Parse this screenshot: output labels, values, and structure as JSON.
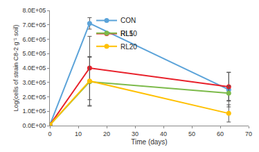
{
  "chart_data": {
    "type": "line",
    "x_label": "Time (days)",
    "y_label": "Log(cells of strain C8-2 g⁻¹ soil)",
    "x": [
      0,
      14,
      63
    ],
    "series": [
      {
        "name": "CON",
        "color": "#5ba3d9",
        "values": [
          5000,
          710000,
          250000
        ],
        "error": [
          0,
          40000,
          120000
        ]
      },
      {
        "name": "RL5",
        "color": "#e8202a",
        "values": [
          5000,
          400000,
          270000
        ],
        "error": [
          0,
          220000,
          100000
        ]
      },
      {
        "name": "RL10",
        "color": "#7cba4a",
        "values": [
          5000,
          305000,
          225000
        ],
        "error": [
          0,
          170000,
          50000
        ]
      },
      {
        "name": "RL20",
        "color": "#ffc000",
        "values": [
          5000,
          310000,
          85000
        ],
        "error": [
          0,
          170000,
          60000
        ]
      }
    ],
    "marker": "circle",
    "xlim": [
      0,
      70
    ],
    "xticks": [
      0,
      10,
      20,
      30,
      40,
      50,
      60,
      70
    ],
    "ylim": [
      0,
      800000
    ],
    "yticks": [
      {
        "value": 0,
        "label": "0.0E+00"
      },
      {
        "value": 100000,
        "label": "1.0E+05"
      },
      {
        "value": 200000,
        "label": "2.0E+05"
      },
      {
        "value": 300000,
        "label": "3.0E+05"
      },
      {
        "value": 400000,
        "label": "4.0E+05"
      },
      {
        "value": 500000,
        "label": "5.0E+05"
      },
      {
        "value": 600000,
        "label": "6.0E+05"
      },
      {
        "value": 700000,
        "label": "7.0E+05"
      },
      {
        "value": 800000,
        "label": "8.0E+05"
      }
    ],
    "grid": false,
    "legend": "top right"
  }
}
